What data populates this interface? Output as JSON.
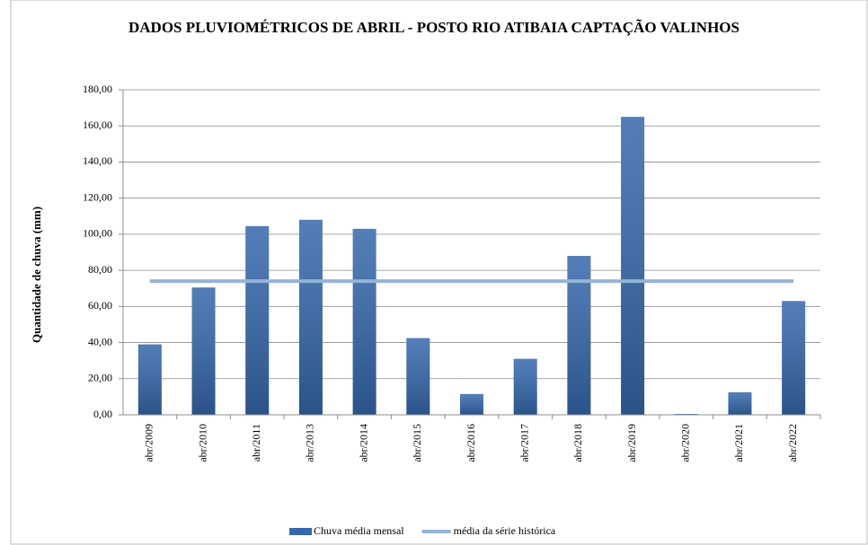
{
  "chart_data": {
    "type": "bar",
    "title": "DADOS PLUVIOMÉTRICOS DE ABRIL - POSTO RIO ATIBAIA CAPTAÇÃO VALINHOS",
    "ylabel": "Quantidade de chuva (mm)",
    "categories": [
      "abr/2009",
      "abr/2010",
      "abr/2011",
      "abr/2013",
      "abr/2014",
      "abr/2015",
      "abr/2016",
      "abr/2017",
      "abr/2018",
      "abr/2019",
      "abr/2020",
      "abr/2021",
      "abr/2022"
    ],
    "series": [
      {
        "name": "Chuva média mensal",
        "type": "bar",
        "color": "#3467ab",
        "values": [
          39,
          70.5,
          104.5,
          108,
          103,
          42.5,
          11.5,
          31,
          88,
          165,
          0.5,
          12.5,
          63
        ]
      },
      {
        "name": "média da série histórica",
        "type": "line",
        "color": "#95b3d7",
        "values": [
          74,
          74,
          74,
          74,
          74,
          74,
          74,
          74,
          74,
          74,
          74,
          74,
          74
        ]
      }
    ],
    "ylim": [
      0,
      180
    ],
    "yticks": [
      {
        "value": 0,
        "label": "0,00"
      },
      {
        "value": 20,
        "label": "20,00"
      },
      {
        "value": 40,
        "label": "40,00"
      },
      {
        "value": 60,
        "label": "60,00"
      },
      {
        "value": 80,
        "label": "80,00"
      },
      {
        "value": 100,
        "label": "100,00"
      },
      {
        "value": 120,
        "label": "120,00"
      },
      {
        "value": 140,
        "label": "140,00"
      },
      {
        "value": 160,
        "label": "160,00"
      },
      {
        "value": 180,
        "label": "180,00"
      }
    ],
    "grid": true,
    "legend": "bottom"
  }
}
